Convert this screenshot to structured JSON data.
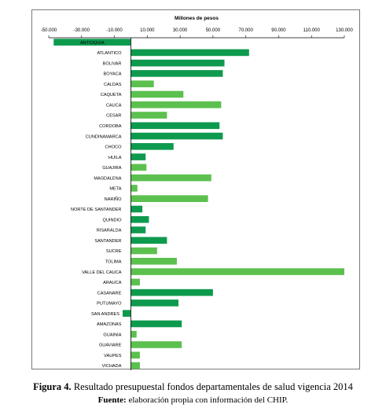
{
  "chart_data": {
    "type": "bar",
    "orientation": "horizontal",
    "title": "Millones de pesos",
    "xlim": [
      -50000,
      130000
    ],
    "x_ticks": [
      "-50.000",
      "-30.000",
      "-10.000",
      "10.000",
      "30.000",
      "50.000",
      "70.000",
      "90.000",
      "110.000",
      "130.000"
    ],
    "x_tick_values": [
      -50000,
      -30000,
      -10000,
      10000,
      30000,
      50000,
      70000,
      90000,
      110000,
      130000
    ],
    "grid": false,
    "colors": {
      "dark": "#0e9a4e",
      "light": "#5cc04f"
    },
    "categories": [
      "ANTIOQUIA",
      "ATLANTICO",
      "BOLIVAR",
      "BOYACA",
      "CALDAS",
      "CAQUETA",
      "CAUCA",
      "CESAR",
      "CORDOBA",
      "CUNDINAMARCA",
      "CHOCO",
      "HUILA",
      "GUAJIRA",
      "MAGDALENA",
      "META",
      "NARIÑO",
      "NORTE DE SANTANDER",
      "QUINDIO",
      "RISARALDA",
      "SANTANDER",
      "SUCRE",
      "TOLIMA",
      "VALLE DEL CAUCA",
      "ARAUCA",
      "CASANARE",
      "PUTUMAYO",
      "SAN ANDRES",
      "AMAZONAS",
      "GUAINIA",
      "GUAVIARE",
      "VAUPES",
      "VICHADA"
    ],
    "values": [
      -47000,
      72000,
      57000,
      56000,
      14000,
      32000,
      55000,
      22000,
      54000,
      56000,
      26000,
      9000,
      9500,
      49000,
      4000,
      47000,
      7000,
      11000,
      9000,
      22000,
      16000,
      28000,
      130000,
      5500,
      50000,
      29000,
      -5000,
      31000,
      3500,
      31000,
      5500,
      5500
    ],
    "bar_colors": [
      "dark",
      "dark",
      "dark",
      "dark",
      "light",
      "light",
      "light",
      "light",
      "dark",
      "dark",
      "dark",
      "dark",
      "light",
      "light",
      "light",
      "light",
      "dark",
      "dark",
      "dark",
      "dark",
      "light",
      "light",
      "light",
      "light",
      "dark",
      "dark",
      "dark",
      "dark",
      "light",
      "light",
      "light",
      "light"
    ]
  },
  "caption": {
    "figure_label": "Figura 4.",
    "figure_text": " Resultado presupuestal fondos departamentales de salud vigencia 2014",
    "source_label": "Fuente:",
    "source_text": " elaboración propia con información del CHIP."
  }
}
